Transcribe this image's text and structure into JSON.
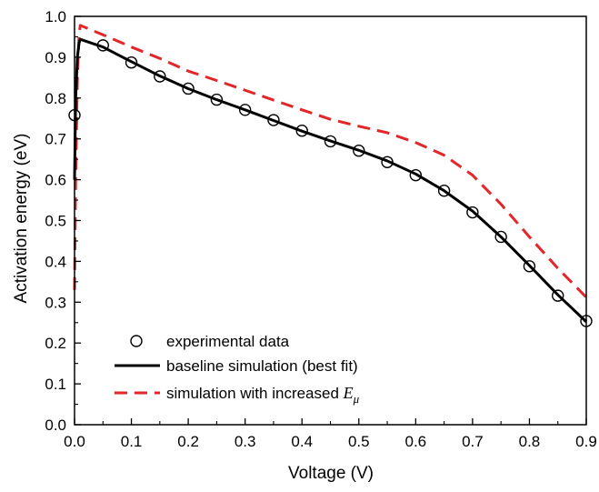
{
  "chart_data": {
    "type": "line",
    "xlabel": "Voltage (V)",
    "ylabel": "Activation energy (eV)",
    "xlim": [
      0.0,
      0.9
    ],
    "ylim": [
      0.0,
      1.0
    ],
    "x_ticks": [
      "0.0",
      "0.1",
      "0.2",
      "0.3",
      "0.4",
      "0.5",
      "0.6",
      "0.7",
      "0.8",
      "0.9"
    ],
    "y_ticks": [
      "0.0",
      "0.1",
      "0.2",
      "0.3",
      "0.4",
      "0.5",
      "0.6",
      "0.7",
      "0.8",
      "0.9",
      "1.0"
    ],
    "grid": false,
    "legend_position": "bottom-left",
    "series": [
      {
        "name": "experimental data",
        "style": "markers",
        "marker": "open-circle",
        "color": "#000000",
        "x": [
          0.0,
          0.05,
          0.1,
          0.15,
          0.2,
          0.25,
          0.3,
          0.35,
          0.4,
          0.45,
          0.5,
          0.55,
          0.6,
          0.65,
          0.7,
          0.75,
          0.8,
          0.85,
          0.9
        ],
        "y": [
          0.758,
          0.929,
          0.887,
          0.853,
          0.823,
          0.796,
          0.771,
          0.746,
          0.72,
          0.694,
          0.671,
          0.643,
          0.611,
          0.573,
          0.52,
          0.46,
          0.388,
          0.316,
          0.254
        ]
      },
      {
        "name": "baseline simulation (best fit)",
        "style": "solid",
        "color": "#000000",
        "x": [
          0.0,
          0.002,
          0.005,
          0.008,
          0.01,
          0.05,
          0.1,
          0.15,
          0.2,
          0.25,
          0.3,
          0.35,
          0.4,
          0.45,
          0.5,
          0.55,
          0.6,
          0.65,
          0.7,
          0.75,
          0.8,
          0.85,
          0.9
        ],
        "y": [
          0.6,
          0.8,
          0.9,
          0.935,
          0.944,
          0.925,
          0.889,
          0.854,
          0.823,
          0.796,
          0.771,
          0.745,
          0.719,
          0.695,
          0.672,
          0.646,
          0.614,
          0.573,
          0.523,
          0.46,
          0.39,
          0.318,
          0.252
        ]
      },
      {
        "name": "simulation with increased Eμ",
        "style": "dashed",
        "color": "#e3262a",
        "x": [
          0.0,
          0.002,
          0.005,
          0.008,
          0.01,
          0.05,
          0.1,
          0.15,
          0.2,
          0.25,
          0.3,
          0.35,
          0.4,
          0.45,
          0.5,
          0.55,
          0.6,
          0.65,
          0.7,
          0.75,
          0.8,
          0.85,
          0.9
        ],
        "y": [
          0.33,
          0.6,
          0.85,
          0.955,
          0.978,
          0.955,
          0.925,
          0.897,
          0.866,
          0.843,
          0.819,
          0.795,
          0.771,
          0.748,
          0.731,
          0.715,
          0.691,
          0.66,
          0.611,
          0.54,
          0.46,
          0.383,
          0.312
        ]
      }
    ]
  },
  "legend": {
    "experimental_label": "experimental data",
    "baseline_label": "baseline simulation (best fit)",
    "increased_label_prefix": "simulation with increased ",
    "increased_symbol": "E",
    "increased_subscript": "μ"
  }
}
